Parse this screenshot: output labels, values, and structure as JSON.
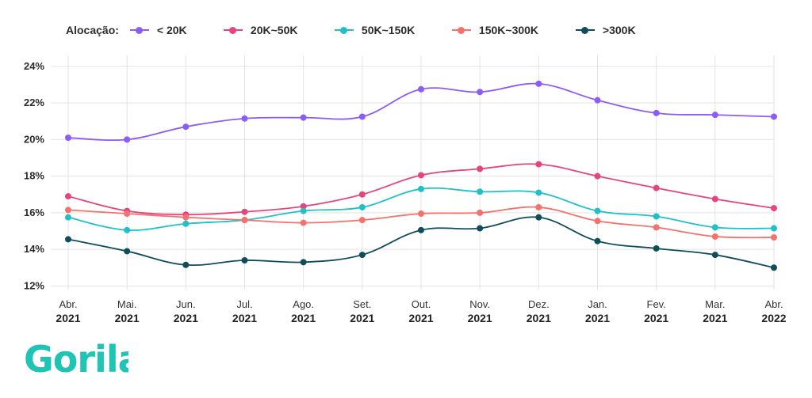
{
  "legend": {
    "title": "Alocação:"
  },
  "brand": {
    "logo_text": "Gorila",
    "color": "#1fc4b4"
  },
  "chart_data": {
    "type": "line",
    "categories": [
      [
        "Abr.",
        "2021"
      ],
      [
        "Mai.",
        "2021"
      ],
      [
        "Jun.",
        "2021"
      ],
      [
        "Jul.",
        "2021"
      ],
      [
        "Ago.",
        "2021"
      ],
      [
        "Set.",
        "2021"
      ],
      [
        "Out.",
        "2021"
      ],
      [
        "Nov.",
        "2021"
      ],
      [
        "Dez.",
        "2021"
      ],
      [
        "Jan.",
        "2021"
      ],
      [
        "Fev.",
        "2021"
      ],
      [
        "Mar.",
        "2021"
      ],
      [
        "Abr.",
        "2022"
      ]
    ],
    "ylim": [
      11.8,
      24.6
    ],
    "yticks": [
      12,
      14,
      16,
      18,
      20,
      22,
      24
    ],
    "ytick_format": "%",
    "grid": true,
    "legend_position": "top-left",
    "series": [
      {
        "name": "< 20K",
        "color": "#8b5cf6",
        "values": [
          20.1,
          20.0,
          20.7,
          21.15,
          21.2,
          21.25,
          22.75,
          22.6,
          23.05,
          22.15,
          21.45,
          21.35,
          21.25
        ]
      },
      {
        "name": "20K~50K",
        "color": "#e5457a",
        "values": [
          16.9,
          16.1,
          15.9,
          16.05,
          16.35,
          17.0,
          18.05,
          18.4,
          18.65,
          18.0,
          17.35,
          16.75,
          16.25
        ]
      },
      {
        "name": "50K~150K",
        "color": "#1fc0c8",
        "values": [
          15.75,
          15.05,
          15.4,
          15.6,
          16.1,
          16.3,
          17.3,
          17.15,
          17.1,
          16.1,
          15.8,
          15.2,
          15.15
        ]
      },
      {
        "name": "150K~300K",
        "color": "#f4726c",
        "values": [
          16.15,
          15.95,
          15.75,
          15.6,
          15.45,
          15.6,
          15.95,
          16.0,
          16.3,
          15.55,
          15.2,
          14.7,
          14.65
        ]
      },
      {
        "name": ">300K",
        "color": "#0f4c5c",
        "values": [
          14.55,
          13.9,
          13.15,
          13.4,
          13.3,
          13.7,
          15.05,
          15.15,
          15.75,
          14.45,
          14.05,
          13.7,
          13.0
        ]
      }
    ]
  }
}
